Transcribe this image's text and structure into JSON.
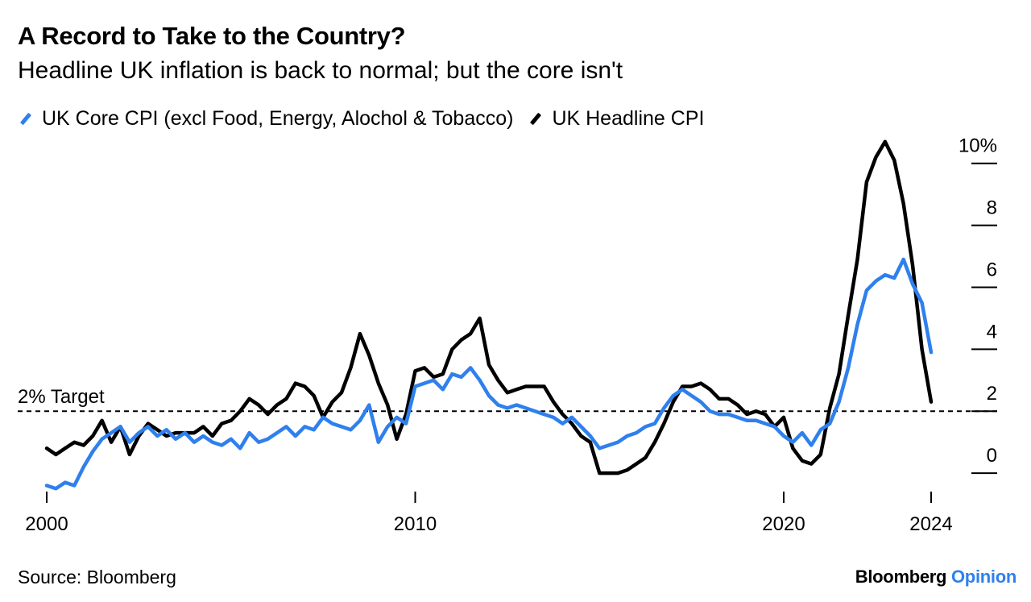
{
  "header": {
    "title": "A Record to Take to the Country?",
    "subtitle": "Headline UK inflation is back to normal; but the core isn't"
  },
  "footer": {
    "source": "Source: Bloomberg",
    "brand_primary": "Bloomberg",
    "brand_secondary": "Opinion"
  },
  "colors": {
    "core": "#2f80ed",
    "headline": "#000000",
    "brand_accent": "#2f80ed"
  },
  "chart_data": {
    "type": "line",
    "title": "A Record to Take to the Country?",
    "subtitle": "Headline UK inflation is back to normal; but the core isn't",
    "xlim": [
      2000,
      2024.0
    ],
    "ylim": [
      -0.7,
      10.8
    ],
    "x_ticks": [
      2000,
      2010,
      2020,
      2024
    ],
    "x_tick_labels": [
      "2000",
      "2010",
      "2020",
      "2024"
    ],
    "y_ticks": [
      0,
      2,
      4,
      6,
      8,
      10
    ],
    "y_tick_labels": [
      "0",
      "2",
      "4",
      "6",
      "8",
      "10%"
    ],
    "y_axis_position": "right",
    "grid": false,
    "legend_position": "top-left",
    "reference_line": {
      "y": 2,
      "label": "2% Target",
      "style": "dashed"
    },
    "series": [
      {
        "name": "UK Core CPI (excl Food, Energy, Alochol & Tobacco)",
        "color": "#2f80ed",
        "x": [
          2000.0,
          2000.25,
          2000.5,
          2000.75,
          2001.0,
          2001.25,
          2001.5,
          2001.75,
          2002.0,
          2002.25,
          2002.5,
          2002.75,
          2003.0,
          2003.25,
          2003.5,
          2003.75,
          2004.0,
          2004.25,
          2004.5,
          2004.75,
          2005.0,
          2005.25,
          2005.5,
          2005.75,
          2006.0,
          2006.25,
          2006.5,
          2006.75,
          2007.0,
          2007.25,
          2007.5,
          2007.75,
          2008.0,
          2008.25,
          2008.5,
          2008.75,
          2009.0,
          2009.25,
          2009.5,
          2009.75,
          2010.0,
          2010.25,
          2010.5,
          2010.75,
          2011.0,
          2011.25,
          2011.5,
          2011.75,
          2012.0,
          2012.25,
          2012.5,
          2012.75,
          2013.0,
          2013.25,
          2013.5,
          2013.75,
          2014.0,
          2014.25,
          2014.5,
          2014.75,
          2015.0,
          2015.25,
          2015.5,
          2015.75,
          2016.0,
          2016.25,
          2016.5,
          2016.75,
          2017.0,
          2017.25,
          2017.5,
          2017.75,
          2018.0,
          2018.25,
          2018.5,
          2018.75,
          2019.0,
          2019.25,
          2019.5,
          2019.75,
          2020.0,
          2020.25,
          2020.5,
          2020.75,
          2021.0,
          2021.25,
          2021.5,
          2021.75,
          2022.0,
          2022.25,
          2022.5,
          2022.75,
          2023.0,
          2023.25,
          2023.5,
          2023.75,
          2024.0
        ],
        "values": [
          -0.4,
          -0.5,
          -0.3,
          -0.4,
          0.2,
          0.7,
          1.1,
          1.3,
          1.5,
          1.0,
          1.3,
          1.5,
          1.2,
          1.4,
          1.1,
          1.3,
          1.0,
          1.2,
          1.0,
          0.9,
          1.1,
          0.8,
          1.3,
          1.0,
          1.1,
          1.3,
          1.5,
          1.2,
          1.5,
          1.4,
          1.8,
          1.6,
          1.5,
          1.4,
          1.7,
          2.2,
          1.0,
          1.5,
          1.8,
          1.6,
          2.8,
          2.9,
          3.0,
          2.7,
          3.2,
          3.1,
          3.4,
          3.0,
          2.5,
          2.2,
          2.1,
          2.2,
          2.1,
          2.0,
          1.9,
          1.8,
          1.6,
          1.8,
          1.5,
          1.2,
          0.8,
          0.9,
          1.0,
          1.2,
          1.3,
          1.5,
          1.6,
          2.1,
          2.5,
          2.7,
          2.5,
          2.3,
          2.0,
          1.9,
          1.9,
          1.8,
          1.7,
          1.7,
          1.6,
          1.5,
          1.2,
          1.0,
          1.3,
          0.9,
          1.4,
          1.6,
          2.3,
          3.4,
          4.8,
          5.9,
          6.2,
          6.4,
          6.3,
          6.9,
          6.1,
          5.5,
          3.9
        ]
      },
      {
        "name": "UK Headline CPI",
        "color": "#000000",
        "x": [
          2000.0,
          2000.25,
          2000.5,
          2000.75,
          2001.0,
          2001.25,
          2001.5,
          2001.75,
          2002.0,
          2002.25,
          2002.5,
          2002.75,
          2003.0,
          2003.25,
          2003.5,
          2003.75,
          2004.0,
          2004.25,
          2004.5,
          2004.75,
          2005.0,
          2005.25,
          2005.5,
          2005.75,
          2006.0,
          2006.25,
          2006.5,
          2006.75,
          2007.0,
          2007.25,
          2007.5,
          2007.75,
          2008.0,
          2008.25,
          2008.5,
          2008.75,
          2009.0,
          2009.25,
          2009.5,
          2009.75,
          2010.0,
          2010.25,
          2010.5,
          2010.75,
          2011.0,
          2011.25,
          2011.5,
          2011.75,
          2012.0,
          2012.25,
          2012.5,
          2012.75,
          2013.0,
          2013.25,
          2013.5,
          2013.75,
          2014.0,
          2014.25,
          2014.5,
          2014.75,
          2015.0,
          2015.25,
          2015.5,
          2015.75,
          2016.0,
          2016.25,
          2016.5,
          2016.75,
          2017.0,
          2017.25,
          2017.5,
          2017.75,
          2018.0,
          2018.25,
          2018.5,
          2018.75,
          2019.0,
          2019.25,
          2019.5,
          2019.75,
          2020.0,
          2020.25,
          2020.5,
          2020.75,
          2021.0,
          2021.25,
          2021.5,
          2021.75,
          2022.0,
          2022.25,
          2022.5,
          2022.75,
          2023.0,
          2023.25,
          2023.5,
          2023.75,
          2024.0
        ],
        "values": [
          0.8,
          0.6,
          0.8,
          1.0,
          0.9,
          1.2,
          1.7,
          1.0,
          1.5,
          0.6,
          1.2,
          1.6,
          1.4,
          1.2,
          1.3,
          1.3,
          1.3,
          1.5,
          1.2,
          1.6,
          1.7,
          2.0,
          2.4,
          2.2,
          1.9,
          2.2,
          2.4,
          2.9,
          2.8,
          2.5,
          1.8,
          2.3,
          2.6,
          3.4,
          4.5,
          3.8,
          2.9,
          2.2,
          1.1,
          1.9,
          3.3,
          3.4,
          3.1,
          3.2,
          4.0,
          4.3,
          4.5,
          5.0,
          3.5,
          3.0,
          2.6,
          2.7,
          2.8,
          2.8,
          2.8,
          2.3,
          1.9,
          1.6,
          1.2,
          1.0,
          0.0,
          0.0,
          0.0,
          0.1,
          0.3,
          0.5,
          1.0,
          1.6,
          2.3,
          2.8,
          2.8,
          2.9,
          2.7,
          2.4,
          2.4,
          2.2,
          1.9,
          2.0,
          1.9,
          1.5,
          1.8,
          0.8,
          0.4,
          0.3,
          0.6,
          2.1,
          3.2,
          5.1,
          6.9,
          9.4,
          10.2,
          10.7,
          10.1,
          8.7,
          6.7,
          4.0,
          2.3
        ]
      }
    ]
  }
}
